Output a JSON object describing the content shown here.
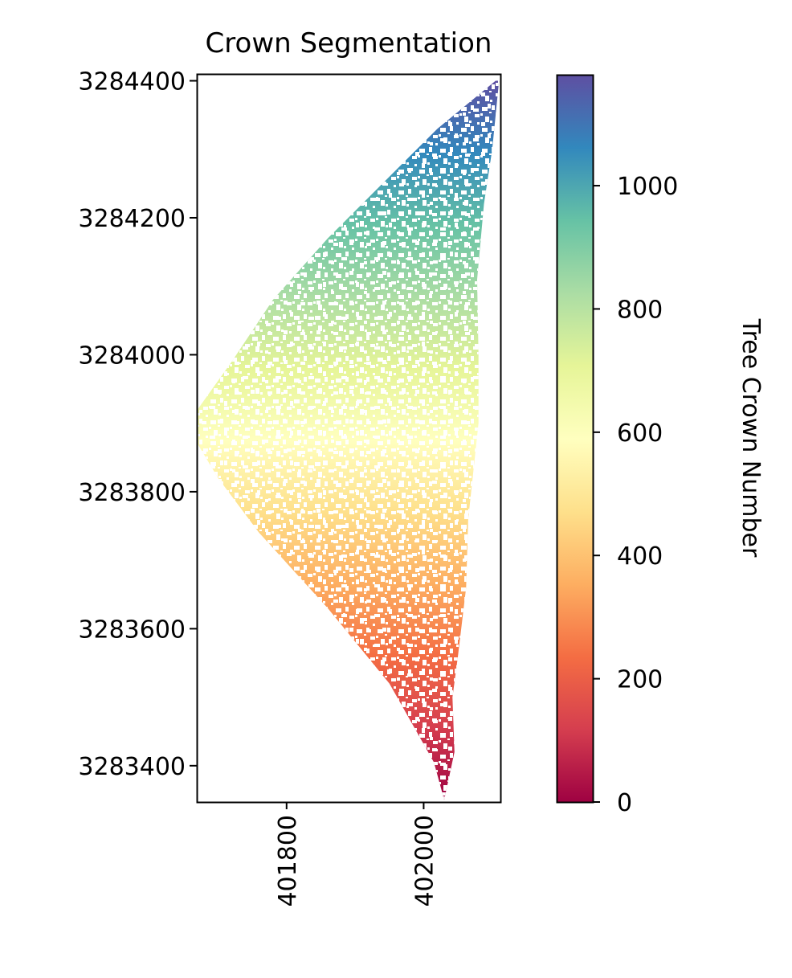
{
  "chart_data": {
    "type": "heatmap",
    "title": "Crown Segmentation",
    "xlabel": "",
    "ylabel": "",
    "xlim": [
      401669,
      402112
    ],
    "ylim": [
      3283347,
      3284410
    ],
    "x_ticks": [
      401800,
      402000
    ],
    "x_tick_labels": [
      "401800",
      "402000"
    ],
    "y_ticks": [
      3283400,
      3283600,
      3283800,
      3284000,
      3284200,
      3284400
    ],
    "y_tick_labels": [
      "3283400",
      "3283600",
      "3283800",
      "3284000",
      "3284200",
      "3284400"
    ],
    "region_vertices": [
      [
        402105,
        3284400
      ],
      [
        402020,
        3284330
      ],
      [
        401940,
        3284250
      ],
      [
        401860,
        3284170
      ],
      [
        401780,
        3284080
      ],
      [
        401720,
        3283990
      ],
      [
        401670,
        3283920
      ],
      [
        401670,
        3283870
      ],
      [
        401700,
        3283820
      ],
      [
        401760,
        3283740
      ],
      [
        401860,
        3283630
      ],
      [
        401950,
        3283520
      ],
      [
        402015,
        3283405
      ],
      [
        402030,
        3283350
      ],
      [
        402045,
        3283420
      ],
      [
        402042,
        3283500
      ],
      [
        402050,
        3283560
      ],
      [
        402062,
        3283660
      ],
      [
        402065,
        3283760
      ],
      [
        402080,
        3283900
      ],
      [
        402080,
        3284000
      ],
      [
        402078,
        3284110
      ],
      [
        402088,
        3284220
      ],
      [
        402100,
        3284300
      ],
      [
        402110,
        3284400
      ]
    ],
    "grid": false,
    "colorbar": {
      "label": "Tree Crown Number",
      "colormap": "Spectral",
      "range": [
        0,
        1180
      ],
      "ticks": [
        0,
        200,
        400,
        600,
        800,
        1000
      ],
      "tick_labels": [
        "0",
        "200",
        "400",
        "600",
        "800",
        "1000"
      ],
      "colors": [
        "#9e0142",
        "#d53e4f",
        "#f46d43",
        "#fdae61",
        "#fee08b",
        "#ffffbf",
        "#e6f598",
        "#abdda4",
        "#66c2a5",
        "#3288bd",
        "#5e4fa2"
      ]
    }
  }
}
